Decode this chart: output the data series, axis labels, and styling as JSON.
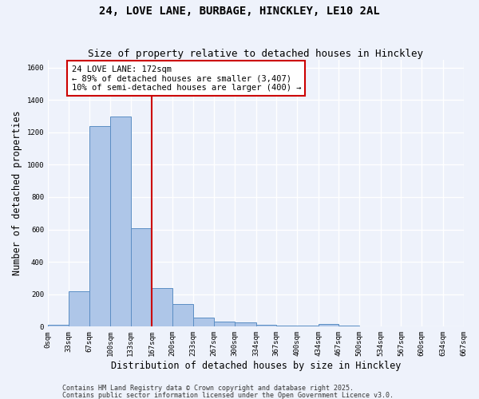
{
  "title": "24, LOVE LANE, BURBAGE, HINCKLEY, LE10 2AL",
  "subtitle": "Size of property relative to detached houses in Hinckley",
  "xlabel": "Distribution of detached houses by size in Hinckley",
  "ylabel": "Number of detached properties",
  "bar_edges": [
    0,
    33,
    67,
    100,
    133,
    167,
    200,
    233,
    267,
    300,
    334,
    367,
    400,
    434,
    467,
    500,
    534,
    567,
    600,
    634,
    667
  ],
  "bar_heights": [
    10,
    220,
    1240,
    1300,
    610,
    240,
    140,
    55,
    30,
    25,
    10,
    5,
    5,
    18,
    5,
    0,
    0,
    0,
    0,
    0
  ],
  "bar_color": "#aec6e8",
  "bar_edge_color": "#5b8ec4",
  "vline_x": 167,
  "vline_color": "#cc0000",
  "annotation_box_text": "24 LOVE LANE: 172sqm\n← 89% of detached houses are smaller (3,407)\n10% of semi-detached houses are larger (400) →",
  "ylim": [
    0,
    1650
  ],
  "xlim": [
    0,
    667
  ],
  "tick_positions": [
    0,
    33,
    67,
    100,
    133,
    167,
    200,
    233,
    267,
    300,
    334,
    367,
    400,
    434,
    467,
    500,
    534,
    567,
    600,
    634,
    667
  ],
  "tick_labels": [
    "0sqm",
    "33sqm",
    "67sqm",
    "100sqm",
    "133sqm",
    "167sqm",
    "200sqm",
    "233sqm",
    "267sqm",
    "300sqm",
    "334sqm",
    "367sqm",
    "400sqm",
    "434sqm",
    "467sqm",
    "500sqm",
    "534sqm",
    "567sqm",
    "600sqm",
    "634sqm",
    "667sqm"
  ],
  "ytick_positions": [
    0,
    200,
    400,
    600,
    800,
    1000,
    1200,
    1400,
    1600
  ],
  "footer_text1": "Contains HM Land Registry data © Crown copyright and database right 2025.",
  "footer_text2": "Contains public sector information licensed under the Open Government Licence v3.0.",
  "background_color": "#eef2fb",
  "grid_color": "#ffffff",
  "title_fontsize": 10,
  "subtitle_fontsize": 9,
  "axis_label_fontsize": 8.5,
  "tick_fontsize": 6.5,
  "annotation_fontsize": 7.5,
  "footer_fontsize": 6
}
